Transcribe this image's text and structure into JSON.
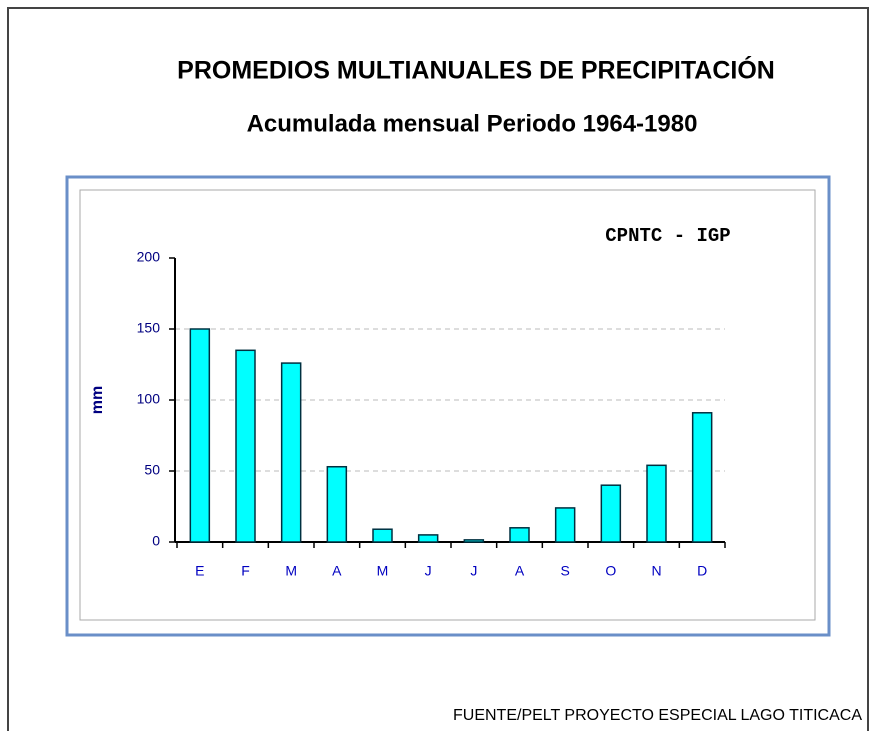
{
  "chart_data": {
    "type": "bar",
    "title": "PROMEDIOS MULTIANUALES DE PRECIPITACIÓN",
    "subtitle": "Acumulada mensual Periodo 1964-1980",
    "annotation": "CPNTC - IGP",
    "ylabel": "mm",
    "source": "FUENTE/PELT PROYECTO ESPECIAL LAGO TITICACA",
    "categories": [
      "E",
      "F",
      "M",
      "A",
      "M",
      "J",
      "J",
      "A",
      "S",
      "O",
      "N",
      "D"
    ],
    "values": [
      150,
      135,
      126,
      53,
      9,
      5,
      1.5,
      10,
      24,
      40,
      54,
      91
    ],
    "color": "#00ffff",
    "ylim": [
      0,
      200
    ],
    "yticks": [
      0,
      50,
      100,
      150,
      200
    ],
    "grid": true
  }
}
